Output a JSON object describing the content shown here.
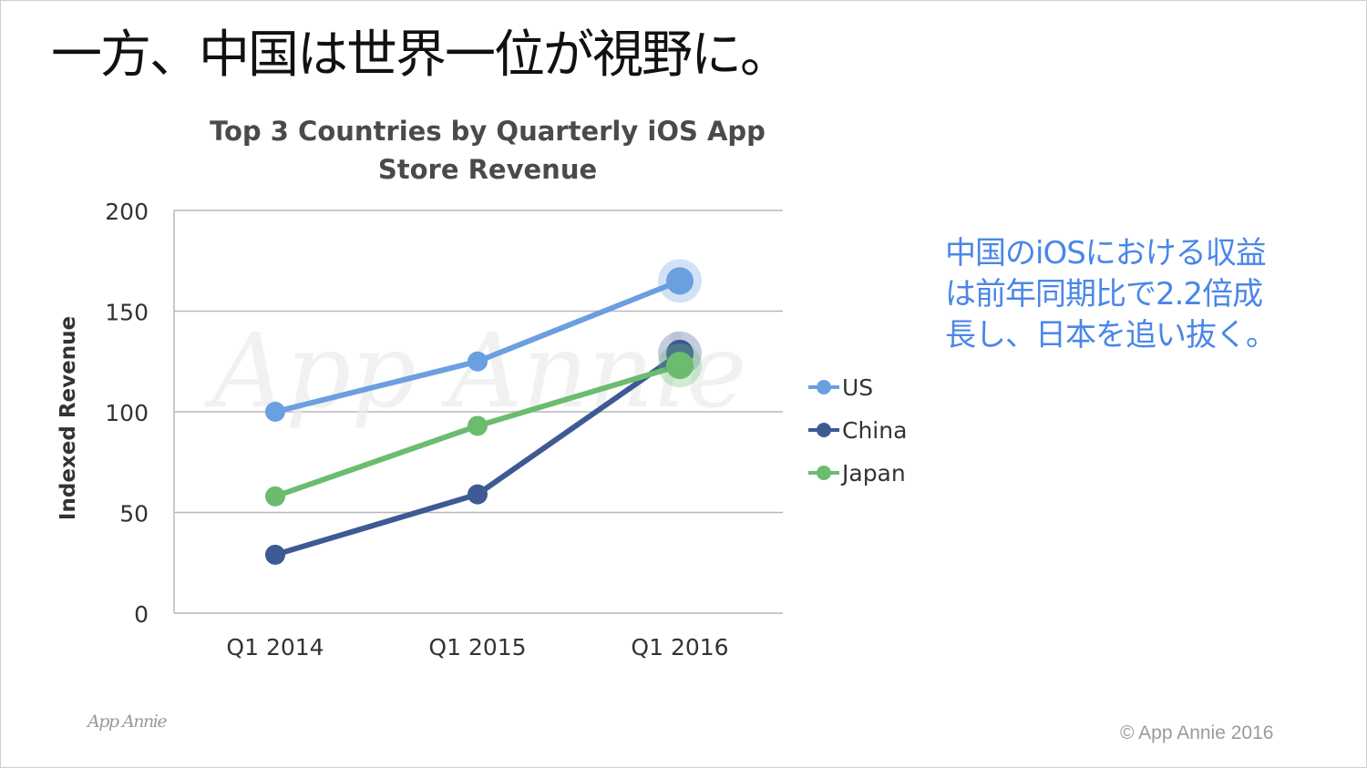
{
  "slide": {
    "title": "一方、中国は世界一位が視野に。",
    "callout_lines": [
      "中国のiOSにおける収益",
      "は前年同期比で2.2倍成",
      "長し、日本を追い抜く。"
    ],
    "brand_logo": "App Annie",
    "watermark": "App Annie",
    "copyright": "© App Annie 2016"
  },
  "chart_data": {
    "type": "line",
    "title": "Top 3 Countries by Quarterly iOS App Store Revenue",
    "xlabel": "",
    "ylabel": "Indexed Revenue",
    "categories": [
      "Q1 2014",
      "Q1 2015",
      "Q1 2016"
    ],
    "ylim": [
      0,
      200
    ],
    "yticks": [
      0,
      50,
      100,
      150,
      200
    ],
    "grid": true,
    "legend": "right",
    "series": [
      {
        "name": "US",
        "color": "#6a9fe0",
        "values": [
          100,
          125,
          165
        ]
      },
      {
        "name": "China",
        "color": "#3d5a94",
        "values": [
          29,
          59,
          129
        ]
      },
      {
        "name": "Japan",
        "color": "#6bbc6f",
        "values": [
          58,
          93,
          123
        ]
      }
    ]
  }
}
